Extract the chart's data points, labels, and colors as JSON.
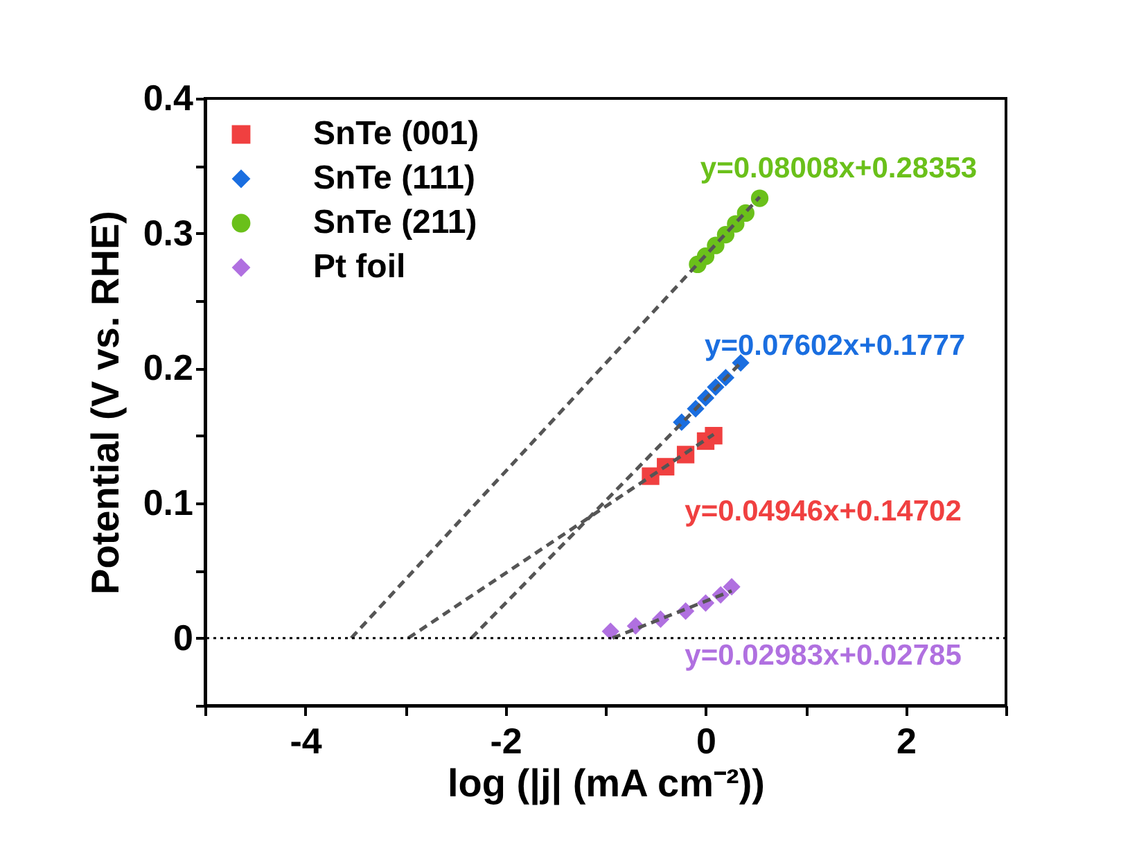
{
  "chart_data": {
    "type": "scatter",
    "xlabel": "log (|j| (mA cm⁻²))",
    "ylabel": "Potential (V vs. RHE)",
    "xlim": [
      -5,
      3
    ],
    "xticks": [
      {
        "value": -5,
        "label": null
      },
      -4,
      {
        "value": -3,
        "label": null
      },
      -2,
      {
        "value": -1,
        "label": null
      },
      0,
      {
        "value": 1,
        "label": null
      },
      2,
      {
        "value": 3,
        "label": null
      }
    ],
    "ylim": [
      -0.05,
      0.4
    ],
    "yticks": [
      {
        "value": -0.05,
        "label": null
      },
      0.0,
      {
        "value": 0.05,
        "label": null
      },
      0.1,
      {
        "value": 0.15,
        "label": null
      },
      0.2,
      {
        "value": 0.25,
        "label": null
      },
      0.3,
      {
        "value": 0.35,
        "label": null
      },
      0.4
    ],
    "grid": false,
    "legend": "top left",
    "series": [
      {
        "name": "SnTe (001)",
        "color": "#f04040",
        "marker": "square",
        "x": [
          -0.55,
          -0.4,
          -0.2,
          0.0,
          0.08
        ],
        "values": [
          0.12,
          0.127,
          0.136,
          0.146,
          0.15
        ]
      },
      {
        "name": "SnTe (111)",
        "color": "#1a6ee0",
        "marker": "diamond",
        "x": [
          -0.24,
          -0.1,
          0.0,
          0.1,
          0.2,
          0.35
        ],
        "values": [
          0.16,
          0.17,
          0.178,
          0.186,
          0.193,
          0.204
        ]
      },
      {
        "name": "SnTe (211)",
        "color": "#6ac01a",
        "marker": "circle",
        "x": [
          -0.08,
          0.0,
          0.1,
          0.2,
          0.3,
          0.4,
          0.54
        ],
        "values": [
          0.277,
          0.283,
          0.291,
          0.299,
          0.307,
          0.315,
          0.326
        ]
      },
      {
        "name": "Pt foil",
        "color": "#b070e0",
        "marker": "diamond",
        "x": [
          -0.95,
          -0.7,
          -0.45,
          -0.2,
          0.0,
          0.15,
          0.26
        ],
        "values": [
          0.005,
          0.009,
          0.014,
          0.02,
          0.026,
          0.032,
          0.038
        ]
      },
      {
        "type": "line",
        "color": "#555555",
        "line_style": "dashed",
        "x": [
          -2.97,
          0.08
        ],
        "values": [
          0.0,
          0.151
        ]
      },
      {
        "type": "line",
        "color": "#555555",
        "line_style": "dashed",
        "x": [
          -2.34,
          0.35
        ],
        "values": [
          0.0,
          0.204
        ]
      },
      {
        "type": "line",
        "color": "#555555",
        "line_style": "dashed",
        "x": [
          -3.54,
          0.54
        ],
        "values": [
          0.0,
          0.327
        ]
      },
      {
        "type": "line",
        "color": "#555555",
        "line_style": "dashed",
        "x": [
          -0.93,
          0.26
        ],
        "values": [
          0.0,
          0.035
        ]
      }
    ],
    "ref_lines": [
      {
        "axis": "y",
        "value": 0,
        "color": "#000000",
        "line_style": "dotted"
      }
    ],
    "annotations": [
      "y=0.04946x+0.14702",
      "y=0.07602x+0.1777",
      "y=0.08008x+0.28353",
      "y=0.02983x+0.02785"
    ]
  }
}
